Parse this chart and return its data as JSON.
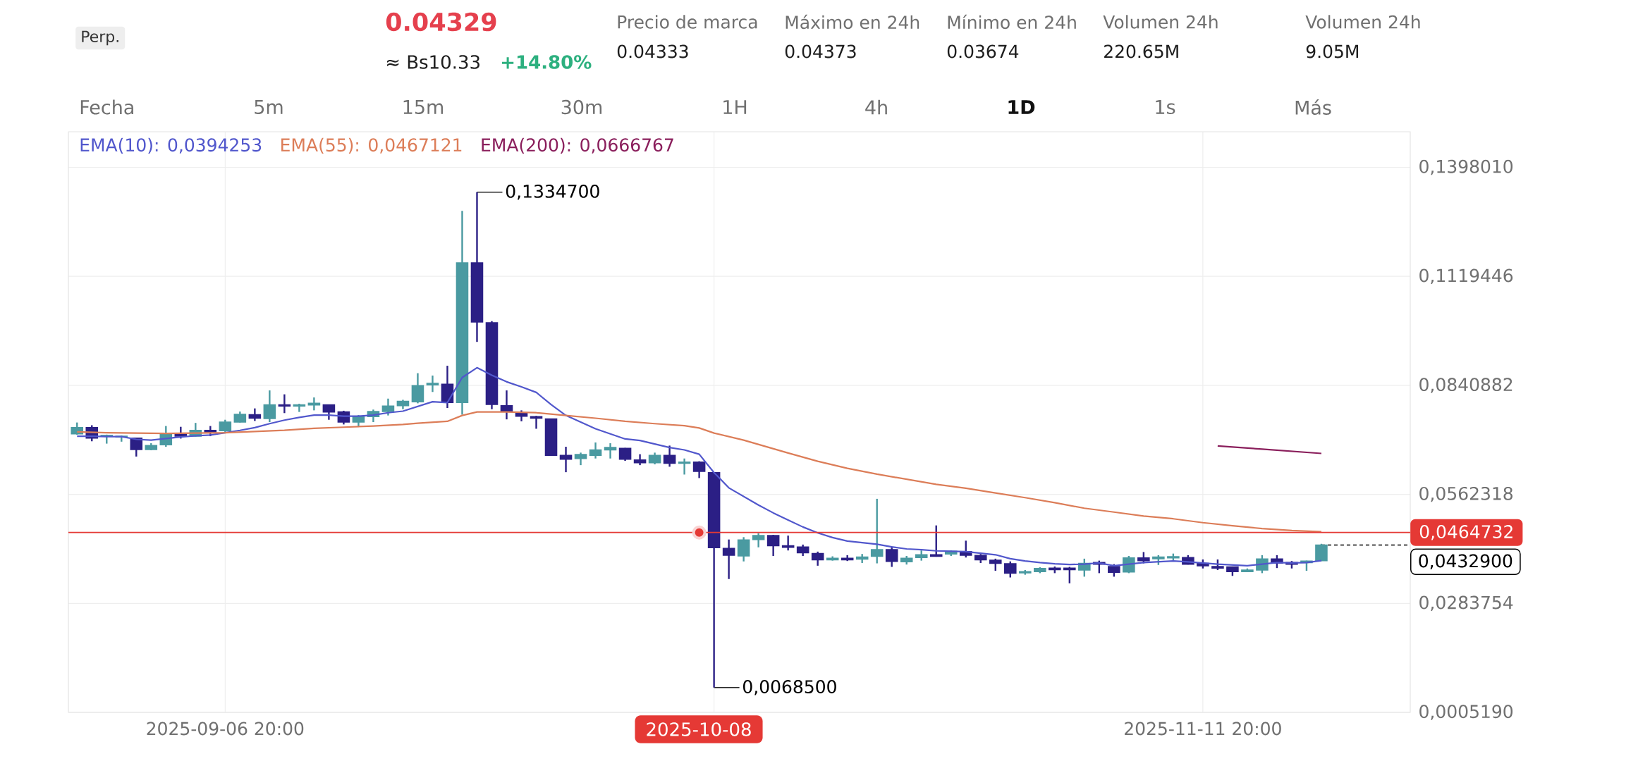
{
  "chart_data": {
    "type": "candlestick",
    "x": [
      "2025-08-27T20:00",
      "2025-08-28T20:00",
      "2025-08-29T20:00",
      "2025-08-30T20:00",
      "2025-08-31T20:00",
      "2025-09-01T20:00",
      "2025-09-02T20:00",
      "2025-09-03T20:00",
      "2025-09-04T20:00",
      "2025-09-05T20:00",
      "2025-09-06T20:00",
      "2025-09-07T20:00",
      "2025-09-08T20:00",
      "2025-09-09T20:00",
      "2025-09-10T20:00",
      "2025-09-11T20:00",
      "2025-09-12T20:00",
      "2025-09-13T20:00",
      "2025-09-14T20:00",
      "2025-09-15T20:00",
      "2025-09-16T20:00",
      "2025-09-17T20:00",
      "2025-09-18T20:00",
      "2025-09-19T20:00",
      "2025-09-20T20:00",
      "2025-09-21T20:00",
      "2025-09-22T20:00",
      "2025-09-23T20:00",
      "2025-09-24T20:00",
      "2025-09-25T20:00",
      "2025-09-26T20:00",
      "2025-09-27T20:00",
      "2025-09-28T20:00",
      "2025-09-29T20:00",
      "2025-09-30T20:00",
      "2025-10-01T20:00",
      "2025-10-02T20:00",
      "2025-10-03T20:00",
      "2025-10-04T20:00",
      "2025-10-05T20:00",
      "2025-10-06T20:00",
      "2025-10-07T20:00",
      "2025-10-08T20:00",
      "2025-10-09T20:00",
      "2025-10-10T20:00",
      "2025-10-11T20:00",
      "2025-10-12T20:00",
      "2025-10-13T20:00",
      "2025-10-14T20:00",
      "2025-10-15T20:00",
      "2025-10-16T20:00",
      "2025-10-17T20:00",
      "2025-10-18T20:00",
      "2025-10-19T20:00",
      "2025-10-20T20:00",
      "2025-10-21T20:00",
      "2025-10-22T20:00",
      "2025-10-23T20:00",
      "2025-10-24T20:00",
      "2025-10-25T20:00",
      "2025-10-26T20:00",
      "2025-10-27T20:00",
      "2025-10-28T20:00",
      "2025-10-29T20:00",
      "2025-10-30T20:00",
      "2025-10-31T20:00",
      "2025-11-01T20:00",
      "2025-11-02T20:00",
      "2025-11-03T20:00",
      "2025-11-04T20:00",
      "2025-11-05T20:00",
      "2025-11-06T20:00",
      "2025-11-07T20:00",
      "2025-11-08T20:00",
      "2025-11-09T20:00",
      "2025-11-10T20:00",
      "2025-11-11T20:00",
      "2025-11-12T20:00",
      "2025-11-13T20:00",
      "2025-11-14T20:00",
      "2025-11-15T20:00",
      "2025-11-16T20:00",
      "2025-11-17T20:00",
      "2025-11-18T20:00",
      "2025-11-19T20:00"
    ],
    "ohlc": [
      [
        0.0717,
        0.0746,
        0.0715,
        0.0733
      ],
      [
        0.0733,
        0.0739,
        0.0698,
        0.0706
      ],
      [
        0.0711,
        0.0715,
        0.0692,
        0.0713
      ],
      [
        0.0709,
        0.0713,
        0.0697,
        0.0711
      ],
      [
        0.0706,
        0.0706,
        0.0659,
        0.0677
      ],
      [
        0.0677,
        0.0693,
        0.0675,
        0.0687
      ],
      [
        0.0689,
        0.0737,
        0.0684,
        0.0715
      ],
      [
        0.0716,
        0.0735,
        0.0705,
        0.0711
      ],
      [
        0.0711,
        0.0745,
        0.071,
        0.0726
      ],
      [
        0.0726,
        0.0737,
        0.0711,
        0.0722
      ],
      [
        0.0725,
        0.0753,
        0.0722,
        0.0747
      ],
      [
        0.0747,
        0.0774,
        0.0746,
        0.0767
      ],
      [
        0.0766,
        0.0782,
        0.075,
        0.0757
      ],
      [
        0.0756,
        0.0828,
        0.0747,
        0.0791
      ],
      [
        0.0791,
        0.0818,
        0.077,
        0.0788
      ],
      [
        0.0788,
        0.0794,
        0.0773,
        0.0791
      ],
      [
        0.0791,
        0.081,
        0.0777,
        0.0795
      ],
      [
        0.0791,
        0.0792,
        0.0753,
        0.0773
      ],
      [
        0.0773,
        0.0776,
        0.0741,
        0.0747
      ],
      [
        0.0747,
        0.0765,
        0.0735,
        0.0762
      ],
      [
        0.0761,
        0.0779,
        0.0747,
        0.0774
      ],
      [
        0.0774,
        0.0807,
        0.0764,
        0.0788
      ],
      [
        0.0789,
        0.0804,
        0.078,
        0.08
      ],
      [
        0.0799,
        0.0872,
        0.0795,
        0.084
      ],
      [
        0.0842,
        0.0866,
        0.0824,
        0.0846
      ],
      [
        0.0844,
        0.0891,
        0.0783,
        0.0797
      ],
      [
        0.0797,
        0.1287,
        0.0766,
        0.1154
      ],
      [
        0.1154,
        0.13347,
        0.0952,
        0.1003
      ],
      [
        0.1001,
        0.1005,
        0.078,
        0.0792
      ],
      [
        0.0789,
        0.0828,
        0.0754,
        0.0775
      ],
      [
        0.0769,
        0.0777,
        0.0749,
        0.0762
      ],
      [
        0.0761,
        0.0763,
        0.073,
        0.0757
      ],
      [
        0.0755,
        0.0755,
        0.0661,
        0.0662
      ],
      [
        0.0662,
        0.0684,
        0.0619,
        0.0652
      ],
      [
        0.0654,
        0.0669,
        0.0637,
        0.0664
      ],
      [
        0.0662,
        0.0695,
        0.0654,
        0.0676
      ],
      [
        0.0676,
        0.0693,
        0.0654,
        0.0682
      ],
      [
        0.068,
        0.0681,
        0.0648,
        0.0652
      ],
      [
        0.065,
        0.0665,
        0.0637,
        0.0643
      ],
      [
        0.0643,
        0.0669,
        0.0639,
        0.0662
      ],
      [
        0.0662,
        0.0687,
        0.0633,
        0.0642
      ],
      [
        0.0642,
        0.0654,
        0.0613,
        0.0645
      ],
      [
        0.0645,
        0.0647,
        0.0604,
        0.0621
      ],
      [
        0.0618,
        0.0619,
        0.00685,
        0.0426
      ],
      [
        0.0424,
        0.0447,
        0.0346,
        0.0407
      ],
      [
        0.0405,
        0.0453,
        0.0391,
        0.0446
      ],
      [
        0.0447,
        0.0463,
        0.0427,
        0.0457
      ],
      [
        0.0457,
        0.0459,
        0.0405,
        0.0431
      ],
      [
        0.0431,
        0.0457,
        0.0419,
        0.0427
      ],
      [
        0.0428,
        0.0434,
        0.0405,
        0.0413
      ],
      [
        0.0411,
        0.0416,
        0.038,
        0.0395
      ],
      [
        0.0395,
        0.0404,
        0.0393,
        0.0399
      ],
      [
        0.0399,
        0.0407,
        0.0392,
        0.0395
      ],
      [
        0.0397,
        0.041,
        0.0387,
        0.0402
      ],
      [
        0.0404,
        0.0551,
        0.0386,
        0.0421
      ],
      [
        0.0421,
        0.0429,
        0.0377,
        0.0391
      ],
      [
        0.039,
        0.0405,
        0.0383,
        0.0399
      ],
      [
        0.0401,
        0.0419,
        0.0393,
        0.0408
      ],
      [
        0.0408,
        0.0483,
        0.0403,
        0.0404
      ],
      [
        0.041,
        0.0419,
        0.0405,
        0.0417
      ],
      [
        0.0416,
        0.0444,
        0.0401,
        0.0407
      ],
      [
        0.0406,
        0.041,
        0.0387,
        0.0395
      ],
      [
        0.0394,
        0.0398,
        0.0367,
        0.0386
      ],
      [
        0.0385,
        0.0391,
        0.035,
        0.0361
      ],
      [
        0.0362,
        0.0369,
        0.0357,
        0.0365
      ],
      [
        0.0365,
        0.0376,
        0.0361,
        0.0373
      ],
      [
        0.0374,
        0.0378,
        0.0361,
        0.037
      ],
      [
        0.0374,
        0.0377,
        0.0335,
        0.037
      ],
      [
        0.0369,
        0.0398,
        0.0352,
        0.0386
      ],
      [
        0.0388,
        0.0393,
        0.0361,
        0.0384
      ],
      [
        0.0378,
        0.0384,
        0.0352,
        0.0363
      ],
      [
        0.0364,
        0.0405,
        0.0361,
        0.04
      ],
      [
        0.04,
        0.0415,
        0.0386,
        0.0393
      ],
      [
        0.0398,
        0.0407,
        0.0382,
        0.0402
      ],
      [
        0.04,
        0.0411,
        0.0393,
        0.0403
      ],
      [
        0.0401,
        0.0407,
        0.0383,
        0.0384
      ],
      [
        0.0386,
        0.0396,
        0.0373,
        0.038
      ],
      [
        0.0378,
        0.0396,
        0.0369,
        0.0374
      ],
      [
        0.0377,
        0.0378,
        0.0354,
        0.0365
      ],
      [
        0.0365,
        0.0373,
        0.0364,
        0.0369
      ],
      [
        0.0369,
        0.0407,
        0.0361,
        0.0397
      ],
      [
        0.0397,
        0.0407,
        0.0374,
        0.0387
      ],
      [
        0.0388,
        0.0392,
        0.0373,
        0.0384
      ],
      [
        0.0388,
        0.0393,
        0.0367,
        0.0392
      ],
      [
        0.0393,
        0.0436,
        0.0392,
        0.04329
      ]
    ],
    "colors": [
      "#4a9aa1",
      "#2b1f85",
      "#4a9aa1",
      "#4a9aa1",
      "#2b1f85",
      "#4a9aa1",
      "#4a9aa1",
      "#2b1f85",
      "#4a9aa1",
      "#2b1f85",
      "#4a9aa1",
      "#4a9aa1",
      "#2b1f85",
      "#4a9aa1",
      "#2b1f85",
      "#4a9aa1",
      "#4a9aa1",
      "#2b1f85",
      "#2b1f85",
      "#4a9aa1",
      "#4a9aa1",
      "#4a9aa1",
      "#4a9aa1",
      "#4a9aa1",
      "#4a9aa1",
      "#2b1f85",
      "#4a9aa1",
      "#2b1f85",
      "#2b1f85",
      "#2b1f85",
      "#2b1f85",
      "#2b1f85",
      "#2b1f85",
      "#2b1f85",
      "#4a9aa1",
      "#4a9aa1",
      "#4a9aa1",
      "#2b1f85",
      "#2b1f85",
      "#4a9aa1",
      "#2b1f85",
      "#4a9aa1",
      "#2b1f85",
      "#2b1f85",
      "#2b1f85",
      "#4a9aa1",
      "#4a9aa1",
      "#2b1f85",
      "#2b1f85",
      "#2b1f85",
      "#2b1f85",
      "#4a9aa1",
      "#2b1f85",
      "#4a9aa1",
      "#4a9aa1",
      "#2b1f85",
      "#4a9aa1",
      "#4a9aa1",
      "#2b1f85",
      "#4a9aa1",
      "#2b1f85",
      "#2b1f85",
      "#2b1f85",
      "#2b1f85",
      "#4a9aa1",
      "#4a9aa1",
      "#2b1f85",
      "#2b1f85",
      "#4a9aa1",
      "#2b1f85",
      "#2b1f85",
      "#4a9aa1",
      "#2b1f85",
      "#4a9aa1",
      "#4a9aa1",
      "#2b1f85",
      "#2b1f85",
      "#2b1f85",
      "#2b1f85",
      "#4a9aa1",
      "#4a9aa1",
      "#2b1f85",
      "#2b1f85",
      "#4a9aa1",
      "#4a9aa1"
    ],
    "series": [
      {
        "type": "line",
        "name": "EMA(10): 0,0394253",
        "color": "#5157cc",
        "values": [
          0.0711,
          0.0711,
          0.071,
          0.071,
          0.0703,
          0.0701,
          0.0705,
          0.0709,
          0.0712,
          0.0714,
          0.072,
          0.0726,
          0.0733,
          0.0743,
          0.0752,
          0.0759,
          0.0765,
          0.0765,
          0.0762,
          0.0762,
          0.0765,
          0.0771,
          0.0775,
          0.0787,
          0.0799,
          0.0797,
          0.0861,
          0.0886,
          0.0867,
          0.085,
          0.0837,
          0.0823,
          0.0792,
          0.0764,
          0.0747,
          0.073,
          0.0717,
          0.0704,
          0.07,
          0.0691,
          0.0682,
          0.0676,
          0.0665,
          0.0618,
          0.0579,
          0.0557,
          0.0535,
          0.0515,
          0.0497,
          0.0479,
          0.0464,
          0.0452,
          0.0443,
          0.0439,
          0.0435,
          0.0428,
          0.0423,
          0.0421,
          0.0418,
          0.0417,
          0.0416,
          0.0412,
          0.0408,
          0.0398,
          0.0392,
          0.0388,
          0.0385,
          0.0383,
          0.0384,
          0.0387,
          0.038,
          0.0384,
          0.0388,
          0.039,
          0.0392,
          0.039,
          0.0387,
          0.0384,
          0.0382,
          0.038,
          0.0384,
          0.0388,
          0.0387,
          0.0388,
          0.0393
        ]
      },
      {
        "type": "line",
        "name": "EMA(55): 0,0467121",
        "color": "#dc7d58",
        "x": [
          "2025-08-27T20:00",
          "2025-08-29T20:00",
          "2025-08-31T20:00",
          "2025-09-02T20:00",
          "2025-09-04T20:00",
          "2025-09-06T20:00",
          "2025-09-08T20:00",
          "2025-09-10T20:00",
          "2025-09-12T20:00",
          "2025-09-14T20:00",
          "2025-09-16T20:00",
          "2025-09-18T20:00",
          "2025-09-19T20:00",
          "2025-09-21T20:00",
          "2025-09-22T20:00",
          "2025-09-23T20:00",
          "2025-09-25T20:00",
          "2025-09-27T20:00",
          "2025-09-29T20:00",
          "2025-10-01T20:00",
          "2025-10-03T20:00",
          "2025-10-05T20:00",
          "2025-10-07T20:00",
          "2025-10-08T20:00",
          "2025-10-09T20:00",
          "2025-10-11T20:00",
          "2025-10-14T20:00",
          "2025-10-16T20:00",
          "2025-10-18T20:00",
          "2025-10-20T20:00",
          "2025-10-22T20:00",
          "2025-10-24T20:00",
          "2025-10-26T20:00",
          "2025-10-28T20:00",
          "2025-10-30T20:00",
          "2025-11-01T20:00",
          "2025-11-03T20:00",
          "2025-11-05T20:00",
          "2025-11-07T20:00",
          "2025-11-09T20:00",
          "2025-11-11T20:00",
          "2025-11-13T20:00",
          "2025-11-15T20:00",
          "2025-11-17T20:00",
          "2025-11-19T20:00"
        ],
        "values": [
          0.0722,
          0.072,
          0.0719,
          0.0718,
          0.0719,
          0.072,
          0.0723,
          0.0726,
          0.0731,
          0.0734,
          0.0737,
          0.0741,
          0.0744,
          0.0749,
          0.0764,
          0.0773,
          0.0773,
          0.0771,
          0.0764,
          0.0757,
          0.0749,
          0.0743,
          0.0738,
          0.0732,
          0.0719,
          0.0701,
          0.0668,
          0.0647,
          0.0629,
          0.0614,
          0.0601,
          0.0588,
          0.0578,
          0.0566,
          0.0554,
          0.0541,
          0.0527,
          0.0517,
          0.0507,
          0.05,
          0.049,
          0.0482,
          0.0475,
          0.047,
          0.0467
        ]
      },
      {
        "type": "line",
        "name": "EMA(200): 0,0666767",
        "color": "#8a1f5c",
        "x": [
          "2025-11-12T20:00",
          "2025-11-15T20:00",
          "2025-11-19T20:00"
        ],
        "values": [
          0.0686,
          0.0678,
          0.0667
        ]
      },
      {
        "type": "scatter",
        "color": "#e53935",
        "x": [
          "2025-10-08T20:00"
        ],
        "values": [
          0.0464732
        ]
      }
    ],
    "xlim": [
      "2025-08-27T06:00",
      "2025-11-25T20:00"
    ],
    "xticks": [
      {
        "value": "2025-09-06T20:00",
        "label": "2025-09-06 20:00"
      },
      {
        "value": "2025-10-09T20:00",
        "label": null
      },
      {
        "value": "2025-11-11T20:00",
        "label": "2025-11-11 20:00"
      }
    ],
    "ylim": [
      0.000519,
      0.1489
    ],
    "yticks": [
      {
        "value": 0.000519,
        "label": "0,0005190"
      },
      {
        "value": 0.0283754,
        "label": "0,0283754"
      },
      {
        "value": 0.0562318,
        "label": "0,0562318"
      },
      {
        "value": 0.0840882,
        "label": "0,0840882"
      },
      {
        "value": 0.1119446,
        "label": "0,1119446"
      },
      {
        "value": 0.139801,
        "label": "0,1398010"
      }
    ],
    "ref_lines": [
      {
        "axis": "y",
        "value": 0.0464732,
        "label": "0,0464732",
        "color": "#e53935"
      }
    ],
    "annotations": [
      "Perp.",
      "0.04329",
      "≈ Bs10.33",
      "+14.80%",
      "Precio de marca",
      "0.04333",
      "Máximo en 24h",
      "0.04373",
      "Mínimo en 24h",
      "0.03674",
      "Volumen 24h",
      "220.65M",
      "Volumen 24h",
      "9.05M",
      "Fecha",
      "5m",
      "15m",
      "30m",
      "1H",
      "4h",
      "1D",
      "1s",
      "Más",
      "2025-10-08",
      {
        "text": "0,1334700",
        "x": "2025-09-23T20:00",
        "y": 0.13347
      },
      {
        "text": "0,0068500",
        "x": "2025-10-09T20:00",
        "y": 0.00685
      },
      {
        "text": "0,0432900",
        "x": "2025-11-19T20:00",
        "y": 0.04329
      }
    ],
    "legend": "top left",
    "grid": true
  }
}
